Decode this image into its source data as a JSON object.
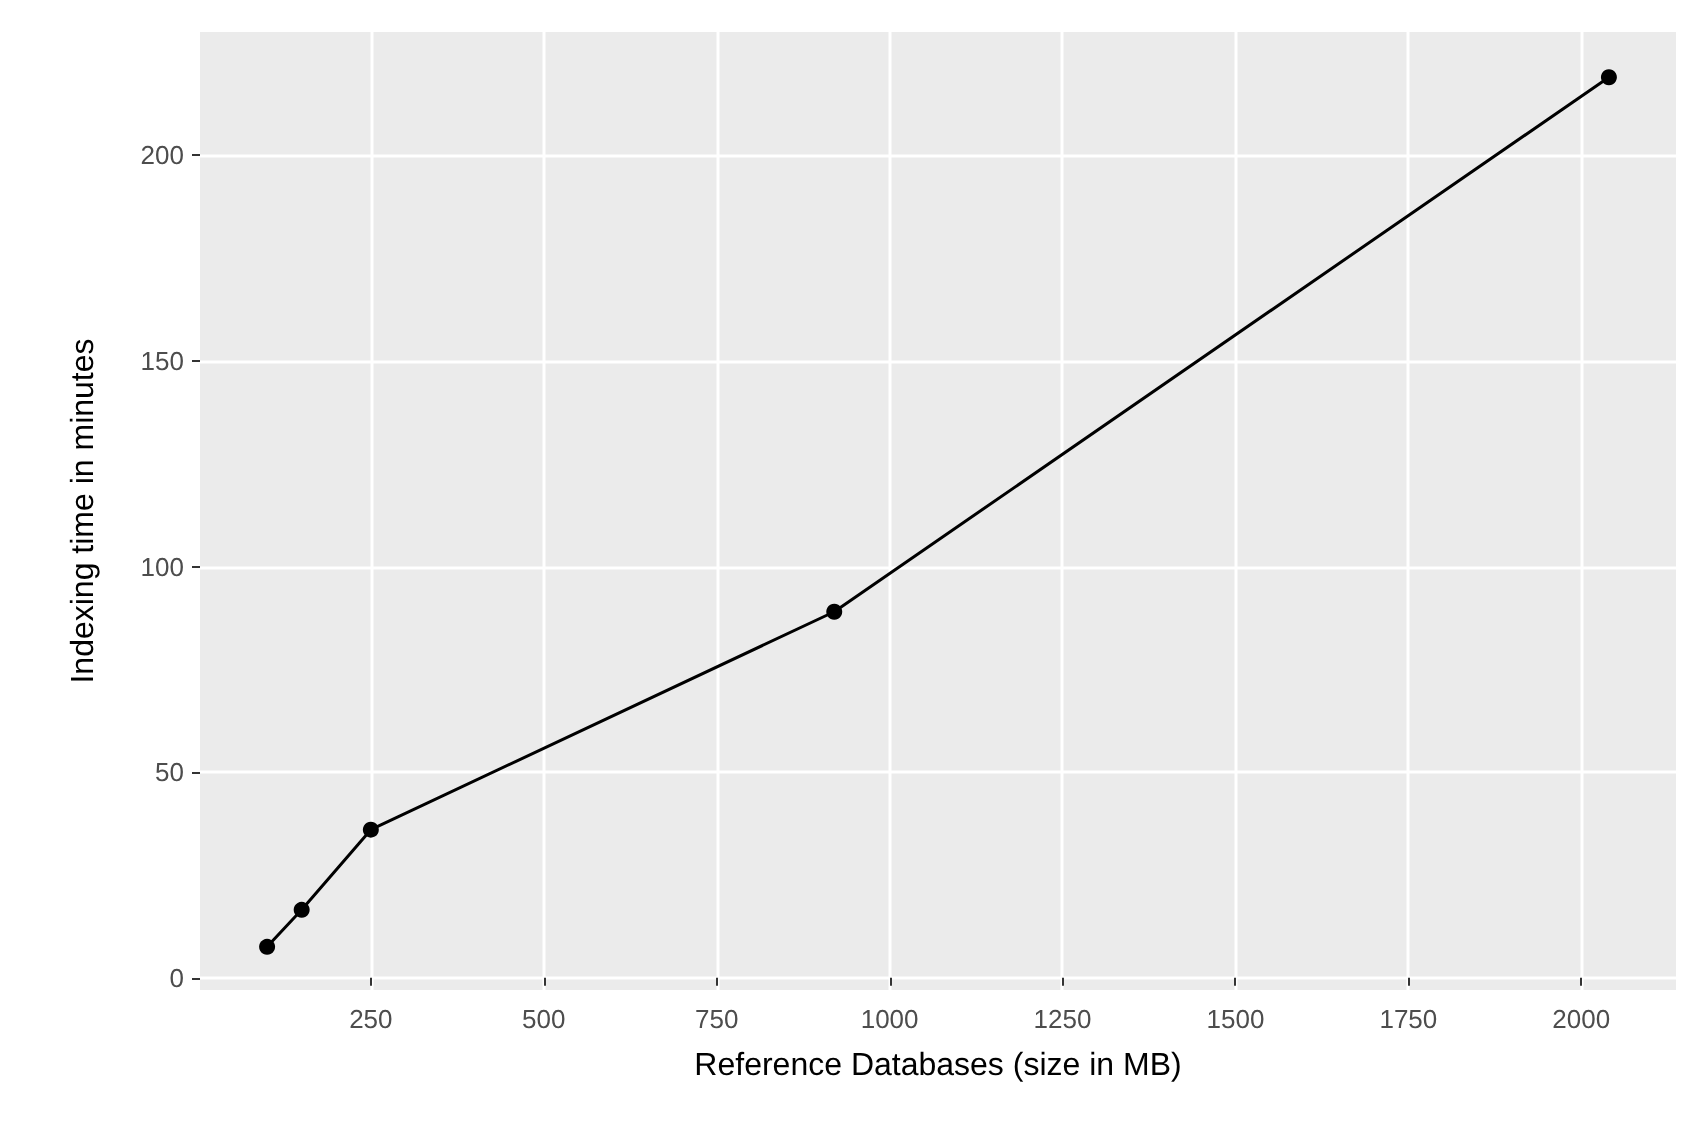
{
  "chart_data": {
    "type": "line",
    "xlabel": "Reference Databases (size in MB)",
    "ylabel": "Indexing time in minutes",
    "x": [
      100,
      150,
      250,
      920,
      2040
    ],
    "series": [
      {
        "color": "#000000",
        "values": [
          7.5,
          16.5,
          36,
          89,
          219
        ]
      }
    ],
    "xlim": [
      3,
      2137
    ],
    "ylim": [
      -3,
      230
    ],
    "xticks": [
      250,
      500,
      750,
      1000,
      1250,
      1500,
      1750,
      2000
    ],
    "yticks": [
      0,
      50,
      100,
      150,
      200
    ],
    "grid": true,
    "marker": "circle",
    "line_style": "solid"
  }
}
